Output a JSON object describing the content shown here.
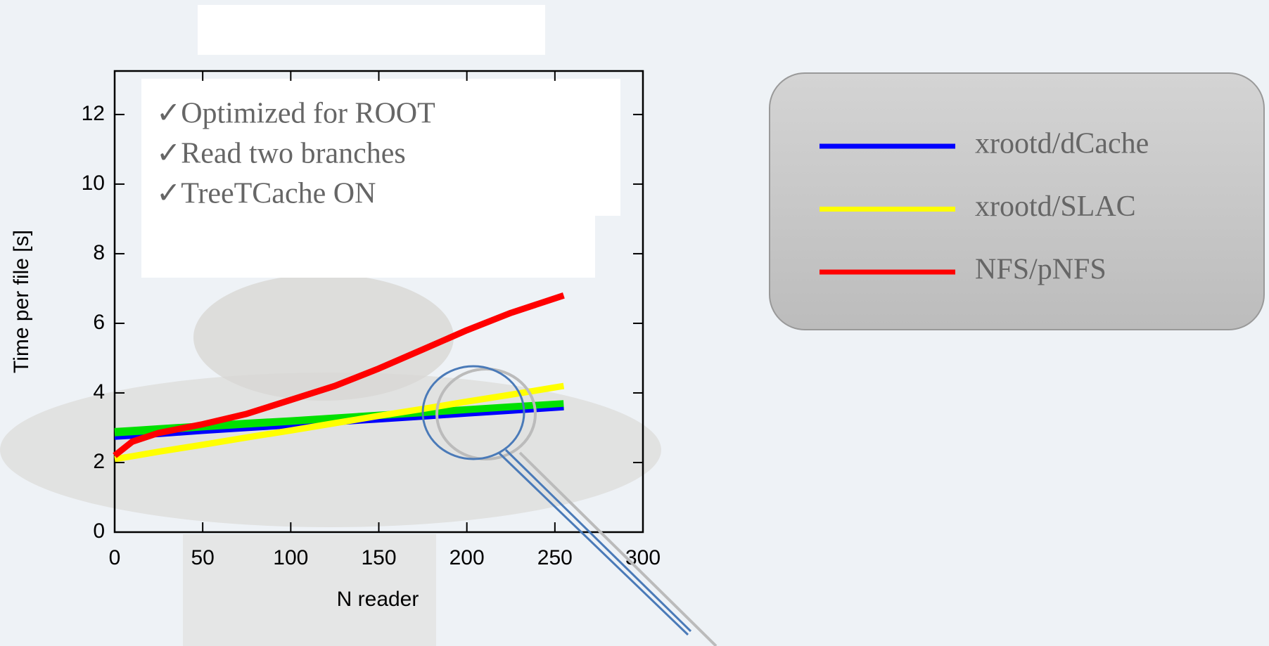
{
  "chart_data": {
    "type": "line",
    "x_label": "N reader",
    "y_label": "Time per file [s]",
    "annotations": [
      "✓Optimized for ROOT",
      "✓Read two branches",
      "✓TreeTCache ON"
    ],
    "xlim": [
      0,
      300
    ],
    "xticks": [
      0,
      50,
      100,
      150,
      200,
      250,
      300
    ],
    "ylim": [
      0,
      13.25
    ],
    "yticks": [
      0,
      2,
      4,
      6,
      8,
      10,
      12
    ],
    "x": [
      0,
      10,
      25,
      50,
      75,
      100,
      125,
      150,
      175,
      200,
      225,
      255
    ],
    "series": [
      {
        "color": "#00e000",
        "values": [
          2.85,
          2.88,
          2.93,
          3.01,
          3.09,
          3.16,
          3.24,
          3.32,
          3.4,
          3.48,
          3.56,
          3.65
        ]
      },
      {
        "name": "xrootd/dCache",
        "color": "#0000ff",
        "values": [
          2.7,
          2.73,
          2.78,
          2.87,
          2.95,
          3.03,
          3.12,
          3.2,
          3.28,
          3.37,
          3.45,
          3.55
        ]
      },
      {
        "name": "xrootd/SLAC",
        "color": "#ffff00",
        "values": [
          2.1,
          2.18,
          2.31,
          2.51,
          2.72,
          2.92,
          3.13,
          3.34,
          3.54,
          3.75,
          3.95,
          4.2
        ]
      },
      {
        "name": "NFS/pNFS",
        "color": "#ff0000",
        "values": [
          2.2,
          2.6,
          2.85,
          3.1,
          3.4,
          3.8,
          4.2,
          4.7,
          5.25,
          5.8,
          6.3,
          6.8
        ]
      }
    ]
  }
}
